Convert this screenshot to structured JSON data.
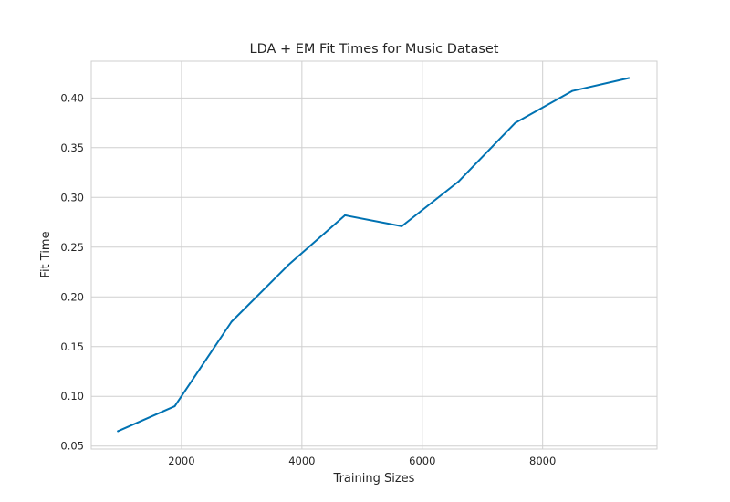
{
  "chart_data": {
    "type": "line",
    "title": "LDA + EM Fit Times for Music Dataset",
    "xlabel": "Training Sizes",
    "ylabel": "Fit Time",
    "xlim": [
      500,
      9900
    ],
    "ylim": [
      0.047,
      0.437
    ],
    "x_ticks": [
      2000,
      4000,
      6000,
      8000
    ],
    "y_ticks": [
      0.05,
      0.1,
      0.15,
      0.2,
      0.25,
      0.3,
      0.35,
      0.4
    ],
    "x_tick_labels": [
      "2000",
      "4000",
      "6000",
      "8000"
    ],
    "y_tick_labels": [
      "0.05",
      "0.10",
      "0.15",
      "0.20",
      "0.25",
      "0.30",
      "0.35",
      "0.40"
    ],
    "grid": true,
    "colors": {
      "line": "#0072b2",
      "grid": "#cfcfcf",
      "spine": "#cfcfcf",
      "text": "#262626"
    },
    "series": [
      {
        "x": [
          943,
          1887,
          2830,
          3773,
          4716,
          5660,
          6603,
          7546,
          8490,
          9433
        ],
        "y": [
          0.065,
          0.09,
          0.175,
          0.232,
          0.282,
          0.271,
          0.316,
          0.375,
          0.407,
          0.42
        ]
      }
    ]
  }
}
